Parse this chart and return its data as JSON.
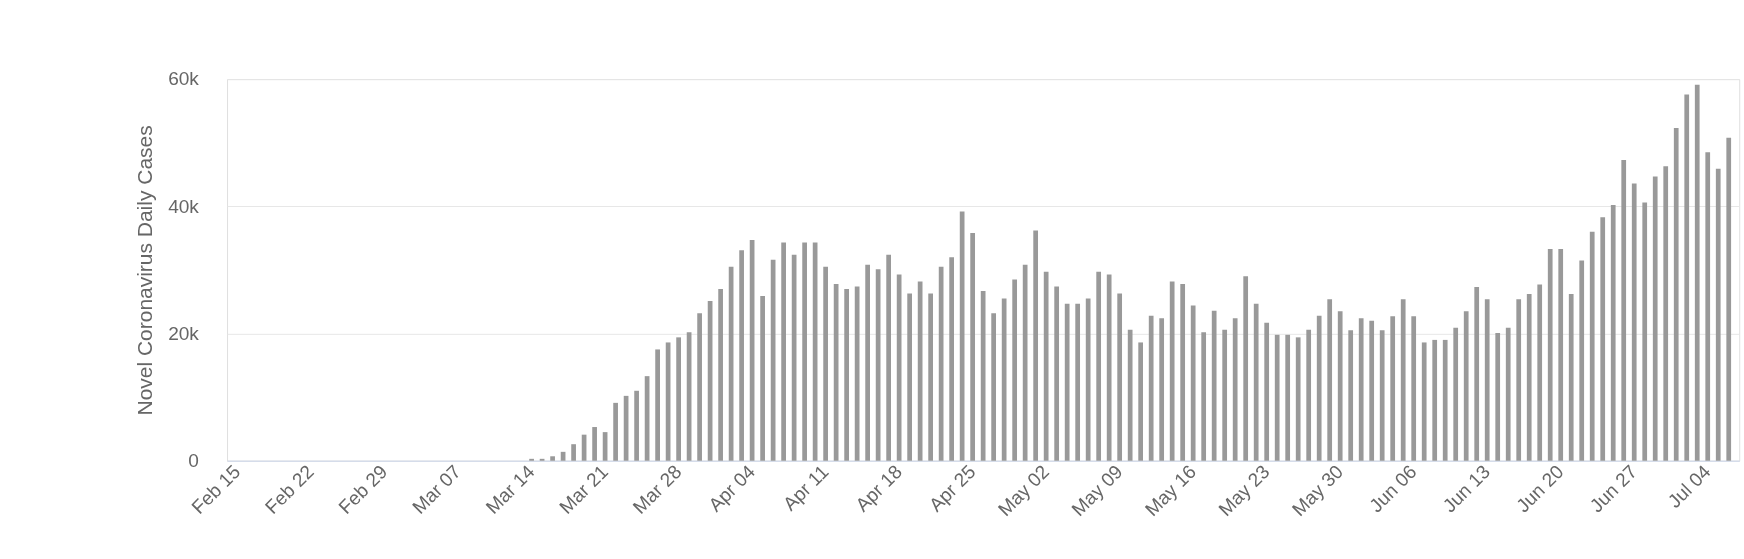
{
  "chart_data": {
    "type": "bar",
    "ylabel": "Novel Coronavirus Daily Cases",
    "categories": [
      "Feb 15",
      null,
      null,
      null,
      null,
      null,
      null,
      "Feb 22",
      null,
      null,
      null,
      null,
      null,
      null,
      "Feb 29",
      null,
      null,
      null,
      null,
      null,
      null,
      "Mar 07",
      null,
      null,
      null,
      null,
      null,
      null,
      "Mar 14",
      null,
      null,
      null,
      null,
      null,
      null,
      "Mar 21",
      null,
      null,
      null,
      null,
      null,
      null,
      "Mar 28",
      null,
      null,
      null,
      null,
      null,
      null,
      "Apr 04",
      null,
      null,
      null,
      null,
      null,
      null,
      "Apr 11",
      null,
      null,
      null,
      null,
      null,
      null,
      "Apr 18",
      null,
      null,
      null,
      null,
      null,
      null,
      "Apr 25",
      null,
      null,
      null,
      null,
      null,
      null,
      "May 02",
      null,
      null,
      null,
      null,
      null,
      null,
      "May 09",
      null,
      null,
      null,
      null,
      null,
      null,
      "May 16",
      null,
      null,
      null,
      null,
      null,
      null,
      "May 23",
      null,
      null,
      null,
      null,
      null,
      null,
      "May 30",
      null,
      null,
      null,
      null,
      null,
      null,
      "Jun 06",
      null,
      null,
      null,
      null,
      null,
      null,
      "Jun 13",
      null,
      null,
      null,
      null,
      null,
      null,
      "Jun 20",
      null,
      null,
      null,
      null,
      null,
      null,
      "Jun 27",
      null,
      null,
      null,
      null,
      null,
      null,
      "Jul 04",
      null,
      null
    ],
    "values": [
      0,
      0,
      0,
      0,
      0,
      0,
      0,
      0,
      0,
      0,
      0,
      0,
      0,
      0,
      0,
      0,
      0,
      0,
      0,
      0,
      0,
      0,
      0,
      0,
      0,
      0,
      0,
      0,
      300,
      300,
      700,
      1400,
      2600,
      4100,
      5300,
      4500,
      9100,
      10200,
      11000,
      13300,
      17500,
      18600,
      19400,
      20200,
      23200,
      25100,
      27000,
      30500,
      33100,
      34700,
      25900,
      31600,
      34300,
      32400,
      34300,
      34300,
      30500,
      27800,
      27000,
      27400,
      30800,
      30100,
      32400,
      29300,
      26300,
      28200,
      26300,
      30500,
      32000,
      39200,
      35800,
      26700,
      23200,
      25500,
      28500,
      30800,
      36200,
      29700,
      27400,
      24700,
      24700,
      25500,
      29700,
      29300,
      26300,
      20600,
      18600,
      22800,
      22400,
      28200,
      27800,
      24400,
      20200,
      23600,
      20600,
      22400,
      29000,
      24700,
      21700,
      19800,
      19800,
      19400,
      20600,
      22800,
      25400,
      23500,
      20500,
      22400,
      22000,
      20500,
      22700,
      25400,
      22700,
      18600,
      19000,
      19000,
      20900,
      23500,
      27300,
      25400,
      20100,
      20900,
      25400,
      26200,
      27700,
      33300,
      33300,
      26200,
      31500,
      36000,
      38300,
      40200,
      47300,
      43600,
      40600,
      44700,
      46300,
      52300,
      57600,
      59100,
      48500,
      45900,
      50800
    ],
    "color": "#999999",
    "ylim": [
      0,
      60000
    ],
    "yticks": [
      0,
      {
        "value": 20000,
        "label": "20k"
      },
      {
        "value": 40000,
        "label": "40k"
      },
      {
        "value": 60000,
        "label": "60k"
      }
    ],
    "grid": "y"
  }
}
